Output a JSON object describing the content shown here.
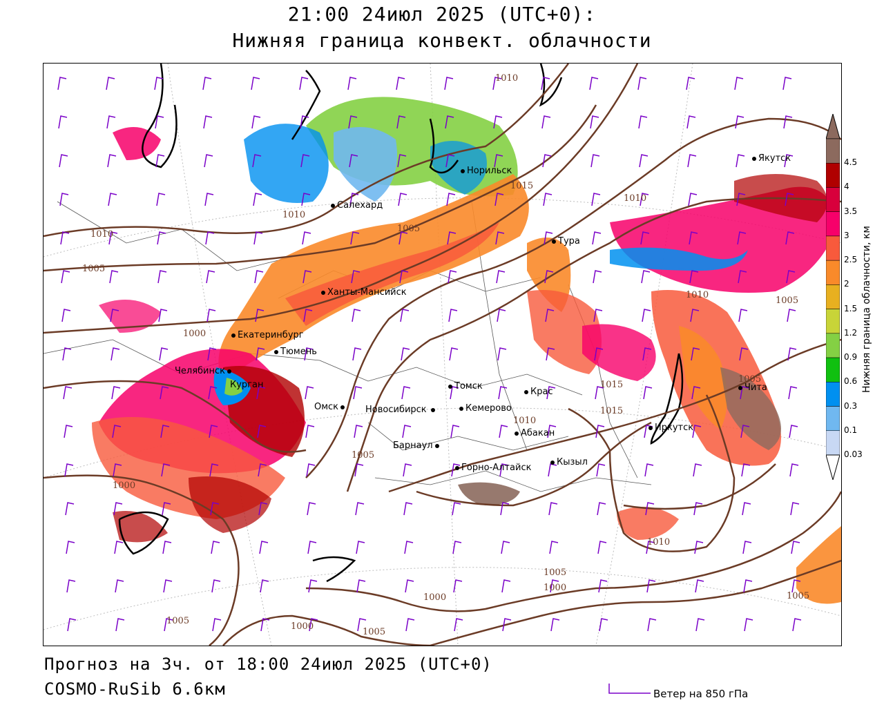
{
  "header": {
    "title_line1": "21:00 24июл 2025 (UTC+0):",
    "title_line2": "Нижняя граница конвект. облачности"
  },
  "footer": {
    "forecast": "Прогноз на 3ч. от 18:00 24июл 2025 (UTC+0)",
    "model": "COSMO-RuSib 6.6км",
    "wind_legend": "Ветер на 850 гПа"
  },
  "legend": {
    "units": "Нижняя граница облачности, км",
    "levels": [
      "4.5",
      "4",
      "3.5",
      "3",
      "2.5",
      "2",
      "1.5",
      "1.2",
      "0.9",
      "0.6",
      "0.3",
      "0.1",
      "0.03"
    ],
    "colors": [
      "#8c6a5e",
      "#b00000",
      "#d8003c",
      "#f7006a",
      "#f85a3c",
      "#f98a2a",
      "#e8b020",
      "#c8d438",
      "#84d044",
      "#10c010",
      "#0090f0",
      "#70b8f0",
      "#c8d8f4"
    ]
  },
  "cities": [
    {
      "name": "Норильск"
    },
    {
      "name": "Салехард"
    },
    {
      "name": "Тура"
    },
    {
      "name": "Якутск"
    },
    {
      "name": "Ханты-Мансийск"
    },
    {
      "name": "Екатеринбург"
    },
    {
      "name": "Тюмень"
    },
    {
      "name": "Челябинск"
    },
    {
      "name": "Курган"
    },
    {
      "name": "Омск"
    },
    {
      "name": "Томск"
    },
    {
      "name": "Новосибирск"
    },
    {
      "name": "Кемерово"
    },
    {
      "name": "Барнаул"
    },
    {
      "name": "Крас"
    },
    {
      "name": "Абакан"
    },
    {
      "name": "Кызыл"
    },
    {
      "name": "Горно-Алтайск"
    },
    {
      "name": "Иркутск"
    },
    {
      "name": "Чита"
    }
  ],
  "isobars": [
    "1010",
    "1015",
    "1010",
    "1010",
    "1005",
    "1010",
    "1000",
    "1005",
    "1000",
    "1005",
    "1015",
    "1010",
    "1005",
    "1010",
    "1005",
    "1000",
    "1000",
    "1000",
    "1005",
    "1005",
    "1010",
    "1015",
    "1005",
    "1010",
    "1005"
  ],
  "colors": {
    "isobar": "#6b3b26",
    "wind": "#7a00c8",
    "border": "#000000"
  }
}
